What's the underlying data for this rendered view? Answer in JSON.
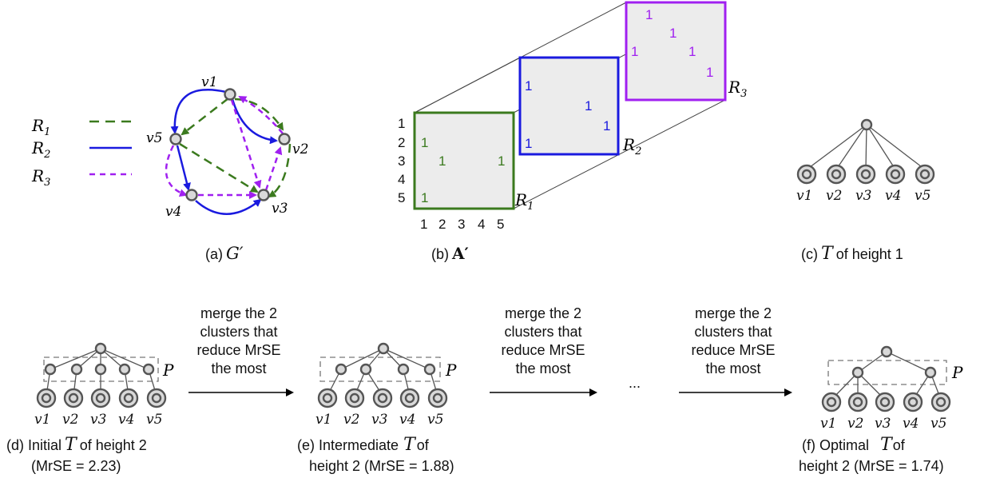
{
  "colors": {
    "r1": "#3b7a1e",
    "r2": "#1a1adf",
    "r3": "#a020f0",
    "node": "#d9d9d9",
    "text": "#111111"
  },
  "panel_a": {
    "caption_prefix": "(a)",
    "caption_math": "G′",
    "legend": [
      "R1",
      "R2",
      "R3"
    ],
    "nodes": [
      "v1",
      "v2",
      "v3",
      "v4",
      "v5"
    ]
  },
  "panel_b": {
    "caption_prefix": "(b)",
    "caption_math": "A′",
    "row_labels": [
      "1",
      "2",
      "3",
      "4",
      "5"
    ],
    "col_labels": [
      "1",
      "2",
      "3",
      "4",
      "5"
    ],
    "matrix_labels": [
      "R1",
      "R2",
      "R3"
    ],
    "cell_value": "1"
  },
  "panel_c": {
    "caption_prefix": "(c)",
    "caption_math": "T",
    "caption_suffix": "of height 1",
    "leaves": [
      "v1",
      "v2",
      "v3",
      "v4",
      "v5"
    ]
  },
  "arrow_text": [
    "merge the 2",
    "clusters that",
    "reduce MrSE",
    "the most"
  ],
  "ellipsis": "...",
  "partition_label": "P",
  "panel_d": {
    "caption_line1_prefix": "(d) Initial",
    "caption_math": "T",
    "caption_line1_suffix": "of height 2",
    "caption_line2": "(MrSE = 2.23)",
    "leaves": [
      "v1",
      "v2",
      "v3",
      "v4",
      "v5"
    ]
  },
  "panel_e": {
    "caption_line1_prefix": "(e) Intermediate",
    "caption_math": "T",
    "caption_line1_suffix": "of",
    "caption_line2": "height 2 (MrSE = 1.88)",
    "leaves": [
      "v1",
      "v2",
      "v3",
      "v4",
      "v5"
    ]
  },
  "panel_f": {
    "caption_line1_prefix": "(f) Optimal",
    "caption_math": "T",
    "caption_line1_suffix": "of",
    "caption_line2": "height 2 (MrSE = 1.74)",
    "leaves": [
      "v1",
      "v2",
      "v3",
      "v4",
      "v5"
    ]
  }
}
